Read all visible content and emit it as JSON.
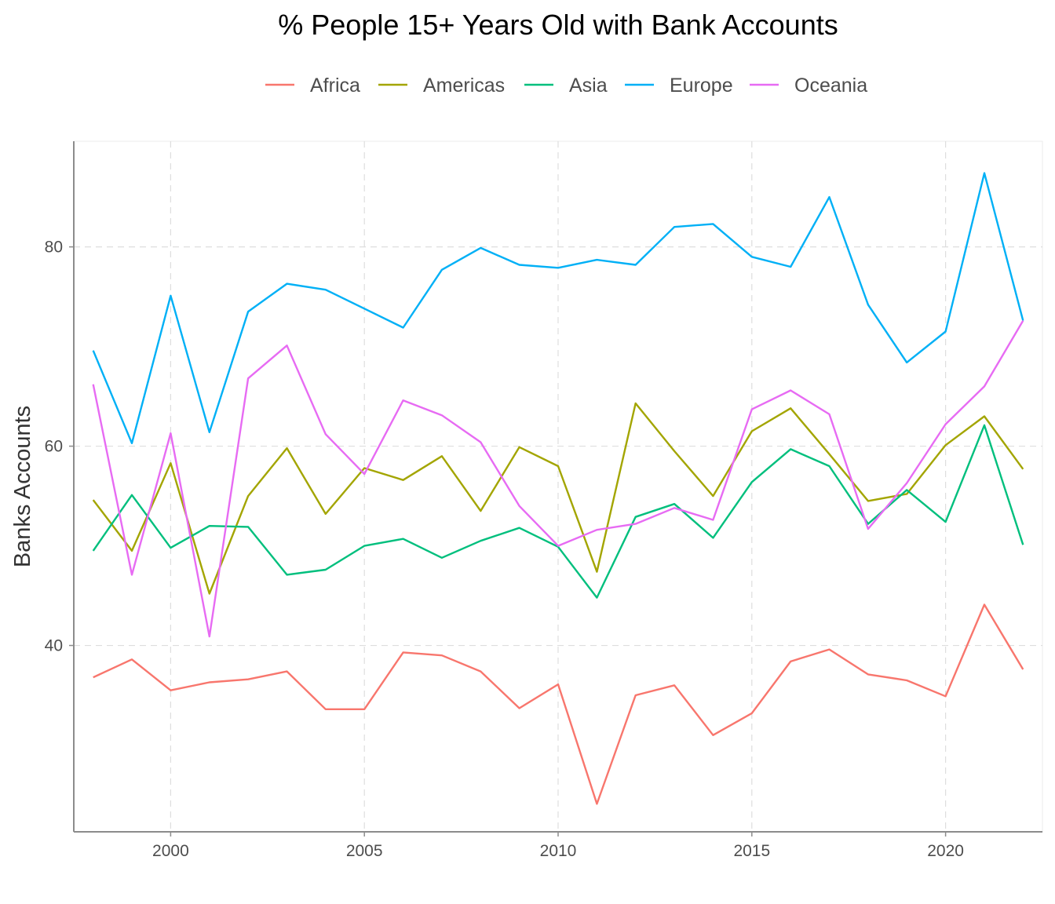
{
  "chart_data": {
    "type": "line",
    "title": "% People 15+ Years Old with Bank Accounts",
    "xlabel": "",
    "ylabel": "Banks Accounts",
    "xlim": [
      1997.5,
      2022.5
    ],
    "ylim": [
      21.3,
      90.6
    ],
    "x_ticks": [
      2000,
      2005,
      2010,
      2015,
      2020
    ],
    "y_ticks": [
      40,
      60,
      80
    ],
    "grid": "dashed",
    "legend_position": "top",
    "x": [
      1998,
      1999,
      2000,
      2001,
      2002,
      2003,
      2004,
      2005,
      2006,
      2007,
      2008,
      2009,
      2010,
      2011,
      2012,
      2013,
      2014,
      2015,
      2016,
      2017,
      2018,
      2019,
      2020,
      2021,
      2022
    ],
    "series": [
      {
        "name": "Africa",
        "color": "#F8766D",
        "values": [
          36.8,
          38.6,
          35.5,
          36.3,
          36.6,
          37.4,
          33.6,
          33.6,
          39.3,
          39.0,
          37.4,
          33.7,
          36.1,
          24.1,
          35.0,
          36.0,
          31.0,
          33.2,
          38.4,
          39.6,
          37.1,
          36.5,
          34.9,
          44.1,
          37.6
        ]
      },
      {
        "name": "Americas",
        "color": "#A3A500",
        "values": [
          54.6,
          49.5,
          58.3,
          45.2,
          55.0,
          59.8,
          53.2,
          57.8,
          56.6,
          59.0,
          53.5,
          59.9,
          58.0,
          47.4,
          64.3,
          59.5,
          55.0,
          61.5,
          63.8,
          59.2,
          54.5,
          55.2,
          60.1,
          63.0,
          57.7
        ]
      },
      {
        "name": "Asia",
        "color": "#00BF7D",
        "values": [
          49.5,
          55.1,
          49.8,
          52.0,
          51.9,
          47.1,
          47.6,
          50.0,
          50.7,
          48.8,
          50.5,
          51.8,
          49.9,
          44.8,
          52.9,
          54.2,
          50.8,
          56.4,
          59.7,
          58.0,
          52.2,
          55.6,
          52.4,
          62.1,
          50.1
        ]
      },
      {
        "name": "Europe",
        "color": "#00B0F6",
        "values": [
          69.6,
          60.3,
          75.1,
          61.4,
          73.5,
          76.3,
          75.7,
          73.8,
          71.9,
          77.7,
          79.9,
          78.2,
          77.9,
          78.7,
          78.2,
          82.0,
          82.3,
          79.0,
          78.0,
          85.0,
          74.2,
          68.4,
          71.5,
          87.4,
          72.6
        ]
      },
      {
        "name": "Oceania",
        "color": "#E76BF3",
        "values": [
          66.2,
          47.1,
          61.3,
          40.9,
          66.8,
          70.1,
          61.2,
          57.2,
          64.6,
          63.1,
          60.4,
          54.0,
          50.0,
          51.6,
          52.2,
          53.8,
          52.6,
          63.7,
          65.6,
          63.2,
          51.7,
          56.3,
          62.2,
          66.0,
          72.6
        ]
      }
    ]
  }
}
